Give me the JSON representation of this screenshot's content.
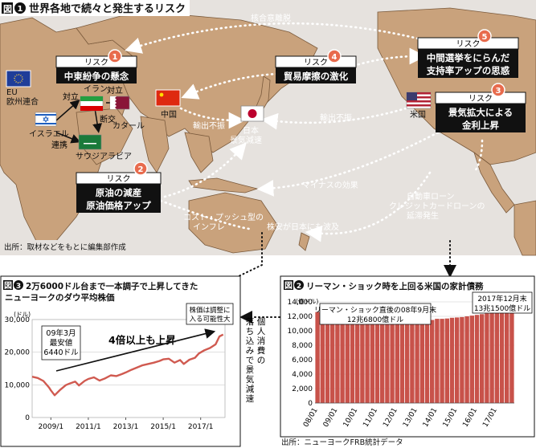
{
  "figure1": {
    "badge": "図",
    "num": "1",
    "title": "世界各地で続々と発生するリスク",
    "source": "出所：取材などをもとに編集部作成",
    "regions": {
      "eu": "EU\n欧州連合",
      "israel": "イスラエル",
      "iran": "イラン",
      "qatar": "カタール",
      "saudi": "サウジアラビア",
      "china": "中国",
      "japan": "日本",
      "usa": "米国"
    },
    "risks": [
      {
        "num": "1",
        "label": "リスク",
        "text": "中東紛争の懸念"
      },
      {
        "num": "2",
        "label": "リスク",
        "text": "原油の減産\n原油価格アップ"
      },
      {
        "num": "3",
        "label": "リスク",
        "text": "景気拡大による\n金利上昇"
      },
      {
        "num": "4",
        "label": "リスク",
        "text": "貿易摩擦の激化"
      },
      {
        "num": "5",
        "label": "リスク",
        "text": "中間選挙をにらんだ\n支持率アップの思惑"
      }
    ],
    "arrow_labels": {
      "rivalry": "対立",
      "rivalry2": "対立",
      "break": "断交",
      "alliance": "連携",
      "core_deal": "核合意離脱",
      "export_slump_cn": "輸出不振",
      "export_slump_us": "輸出不振",
      "japan_slowdown": "日本\n景気減速",
      "minus_effect": "マイナスの効果",
      "cost_push": "コスト・プッシュ型の\nインフレ",
      "stock_drop": "株安が日本にも波及",
      "auto_loan": "自動車ローン\nクレジットカードローンの\n延滞発生"
    }
  },
  "figure3": {
    "badge": "図",
    "num": "3",
    "title": "2万6000ドル台まで一本調子で上昇してきた\nニューヨークのダウ平均株価",
    "side_note": "個人消費の\n落ち込みで景気減速",
    "chart_data": {
      "type": "line",
      "yunit": "(ドル)",
      "ylim": [
        0,
        30000
      ],
      "yticks": [
        0,
        10000,
        20000,
        30000
      ],
      "ytick_labels": [
        "0",
        "10,000",
        "20,000",
        "30,000"
      ],
      "xtick_labels": [
        "2009/1",
        "2011/1",
        "2013/1",
        "2015/1",
        "2017/1"
      ],
      "xtick_positions": [
        2009.0,
        2011.0,
        2013.0,
        2015.0,
        2017.0
      ],
      "xlim": [
        2008.0,
        2018.3
      ],
      "x": [
        2008.0,
        2008.3,
        2008.6,
        2008.9,
        2009.0,
        2009.2,
        2009.5,
        2009.8,
        2010.0,
        2010.3,
        2010.5,
        2010.8,
        2011.0,
        2011.3,
        2011.6,
        2011.9,
        2012.2,
        2012.5,
        2012.8,
        2013.0,
        2013.3,
        2013.6,
        2013.9,
        2014.2,
        2014.5,
        2014.8,
        2015.0,
        2015.3,
        2015.6,
        2015.9,
        2016.1,
        2016.4,
        2016.7,
        2016.9,
        2017.2,
        2017.5,
        2017.8,
        2018.0,
        2018.2
      ],
      "y": [
        12500,
        12100,
        11200,
        9200,
        8300,
        6800,
        8500,
        9900,
        10400,
        11000,
        9800,
        11200,
        11800,
        12300,
        11300,
        12000,
        12900,
        12700,
        13300,
        13800,
        14600,
        15300,
        16000,
        16400,
        16800,
        17300,
        17800,
        18000,
        16800,
        17600,
        16400,
        17700,
        18300,
        19600,
        20600,
        21300,
        22400,
        24800,
        25400
      ],
      "annotations": [
        {
          "text": "09年3月\n最安値\n6440ドル"
        },
        {
          "text": "4倍以上も上昇"
        },
        {
          "text": "株価は調整に\n入る可能性大"
        }
      ]
    }
  },
  "figure2": {
    "badge": "図",
    "num": "2",
    "title": "リーマン・ショック時を上回る米国の家計債務",
    "source": "出所：ニューヨークFRB統計データ",
    "chart_data": {
      "type": "bar",
      "yunit": "(億ドル)",
      "ylim": [
        0,
        14000
      ],
      "yticks": [
        0,
        2000,
        4000,
        6000,
        8000,
        10000,
        12000,
        14000
      ],
      "ytick_labels": [
        "0",
        "2,000",
        "4,000",
        "6,000",
        "8,000",
        "10,000",
        "12,000",
        "14,000"
      ],
      "xtick_labels": [
        "08/01",
        "09/01",
        "10/01",
        "11/01",
        "12/01",
        "13/01",
        "14/01",
        "15/01",
        "16/01",
        "17/01"
      ],
      "categories": [
        "08Q1",
        "08Q2",
        "08Q3",
        "08Q4",
        "09Q1",
        "09Q2",
        "09Q3",
        "09Q4",
        "10Q1",
        "10Q2",
        "10Q3",
        "10Q4",
        "11Q1",
        "11Q2",
        "11Q3",
        "11Q4",
        "12Q1",
        "12Q2",
        "12Q3",
        "12Q4",
        "13Q1",
        "13Q2",
        "13Q3",
        "13Q4",
        "14Q1",
        "14Q2",
        "14Q3",
        "14Q4",
        "15Q1",
        "15Q2",
        "15Q3",
        "15Q4",
        "16Q1",
        "16Q2",
        "16Q3",
        "16Q4",
        "17Q1",
        "17Q2",
        "17Q3",
        "17Q4"
      ],
      "values": [
        12600,
        12700,
        12680,
        12600,
        12500,
        12300,
        12100,
        12000,
        11900,
        11800,
        11700,
        11600,
        11650,
        11550,
        11500,
        11450,
        11400,
        11350,
        11300,
        11350,
        11200,
        11150,
        11250,
        11500,
        11650,
        11650,
        11700,
        11800,
        11850,
        11900,
        12000,
        12100,
        12200,
        12300,
        12400,
        12600,
        12700,
        12800,
        13000,
        13150
      ],
      "annotations": [
        {
          "text": "リーマン・ショック直後の08年9月末\n12兆6800億ドル"
        },
        {
          "text": "2017年12月末\n13兆1500億ドル"
        }
      ]
    }
  },
  "colors": {
    "ocean": "#e8e4e0",
    "land": "#c9a27c",
    "land_edge": "#8a6a4a",
    "accent": "#e86b4d",
    "bar": "#c8524a",
    "line": "#d05a50",
    "dark": "#111111"
  }
}
